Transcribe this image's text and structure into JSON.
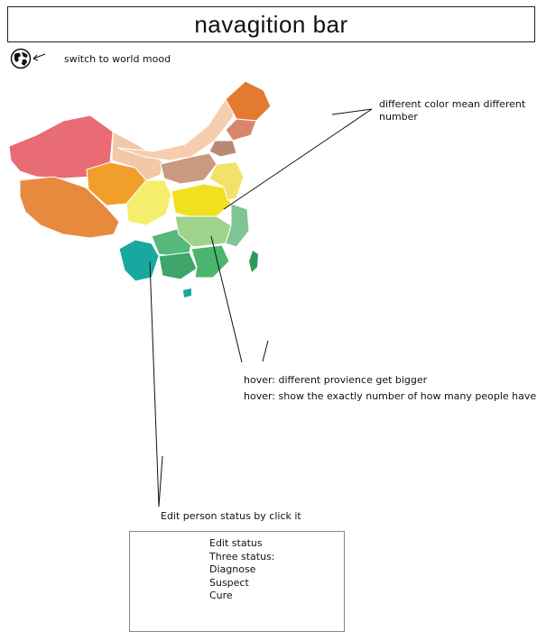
{
  "navbar": {
    "title": "navagition bar"
  },
  "world_toggle": {
    "icon": "globe-icon",
    "label": "switch to world mood"
  },
  "annotations": {
    "color_note": "different color mean different number",
    "hover_bigger": "hover: different provience get bigger",
    "hover_number": "hover: show the exactly number of how many people have vrius",
    "edit_note": "Edit person status by click it"
  },
  "status_panel": {
    "title": "Edit status",
    "subtitle": "Three status:",
    "options": [
      "Diagnose",
      "Suspect",
      "Cure"
    ]
  },
  "map": {
    "colors": {
      "xinjiang": "#e96b73",
      "tibet": "#e88a3e",
      "qinghai": "#f0a02a",
      "gansu": "#f4c7a9",
      "inner_mongolia": "#f7cdb0",
      "heilongjiang": "#e47a30",
      "jilin": "#d9876a",
      "liaoning": "#b98a73",
      "sichuan": "#f5ee6c",
      "yunnan": "#19a8a0",
      "guangxi": "#57b979",
      "guangdong": "#4bb46e",
      "central": "#f0e020",
      "east": "#9fd28a",
      "taiwan": "#2e9a5a"
    }
  }
}
